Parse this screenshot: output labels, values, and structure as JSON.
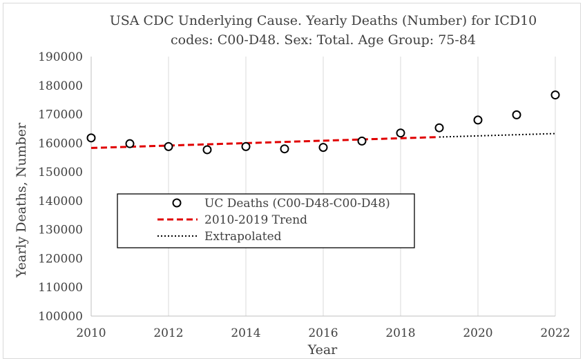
{
  "chart_data": {
    "type": "scatter",
    "title_line1": "USA CDC Underlying Cause. Yearly Deaths (Number) for ICD10",
    "title_line2": "codes: C00-D48. Sex: Total. Age Group: 75-84",
    "xlabel": "Year",
    "ylabel": "Yearly Deaths, Number",
    "xlim": [
      2010,
      2022
    ],
    "ylim": [
      100000,
      190000
    ],
    "x_ticks": [
      "2010",
      "2012",
      "2014",
      "2016",
      "2018",
      "2020",
      "2022"
    ],
    "y_ticks": [
      "100000",
      "110000",
      "120000",
      "130000",
      "140000",
      "150000",
      "160000",
      "170000",
      "180000",
      "190000"
    ],
    "grid": "vertical-major",
    "legend_position": "left-center",
    "series": [
      {
        "name": "UC Deaths (C00-D48-C00-D48)",
        "kind": "scatter",
        "color": "#000000",
        "x": [
          2010,
          2011,
          2012,
          2013,
          2014,
          2015,
          2016,
          2017,
          2018,
          2019,
          2020,
          2021,
          2022
        ],
        "y": [
          161800,
          159800,
          158800,
          157700,
          158800,
          158000,
          158500,
          160700,
          163500,
          165300,
          168000,
          169800,
          176700
        ]
      },
      {
        "name": "2010-2019 Trend",
        "kind": "line",
        "color": "#e00000",
        "style": "dashed",
        "x": [
          2010,
          2019
        ],
        "y": [
          158300,
          162100
        ]
      },
      {
        "name": "Extrapolated",
        "kind": "line",
        "color": "#000000",
        "style": "dotted",
        "x": [
          2019,
          2022
        ],
        "y": [
          162100,
          163300
        ]
      }
    ]
  }
}
